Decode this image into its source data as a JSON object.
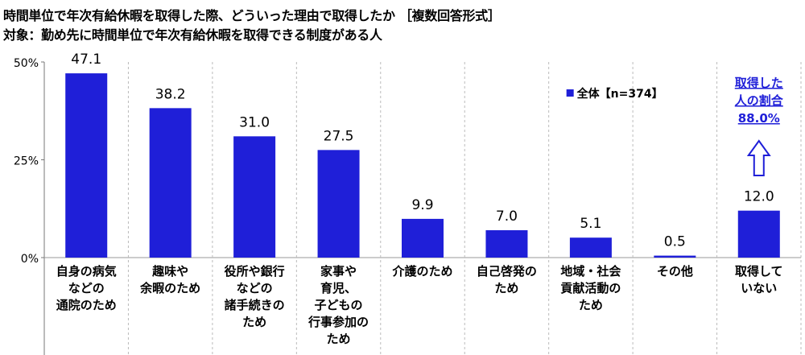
{
  "header": {
    "title": "時間単位で年次有給休暇を取得した際、どういった理由で取得したか ［複数回答形式］",
    "subtitle": "対象：勤め先に時間単位で年次有給休暇を取得できる制度がある人"
  },
  "chart_data": {
    "type": "bar",
    "title": "時間単位で年次有給休暇を取得した際、どういった理由で取得したか ［複数回答形式］",
    "subtitle": "対象：勤め先に時間単位で年次有給休暇を取得できる制度がある人",
    "categories": [
      [
        "自身の病気",
        "などの",
        "通院のため"
      ],
      [
        "趣味や",
        "余暇のため"
      ],
      [
        "役所や銀行",
        "などの",
        "諸手続きの",
        "ため"
      ],
      [
        "家事や",
        "育児、",
        "子どもの",
        "行事参加の",
        "ため"
      ],
      [
        "介護のため"
      ],
      [
        "自己啓発の",
        "ため"
      ],
      [
        "地域・社会",
        "貢献活動の",
        "ため"
      ],
      [
        "その他"
      ],
      [
        "取得して",
        "いない"
      ]
    ],
    "series": [
      {
        "name": "全体【n=374】",
        "values": [
          47.1,
          38.2,
          31.0,
          27.5,
          9.9,
          7.0,
          5.1,
          0.5,
          12.0
        ]
      }
    ],
    "value_labels": [
      "47.1",
      "38.2",
      "31.0",
      "27.5",
      "9.9",
      "7.0",
      "5.1",
      "0.5",
      "12.0"
    ],
    "y_ticks": [
      "0%",
      "25%",
      "50%"
    ],
    "ylim": [
      0,
      50
    ],
    "legend_placement": "top-right",
    "legend": "全体【n=374】",
    "callout": {
      "lines": [
        "取得した",
        "人の割合",
        "88.0%"
      ]
    },
    "colors": {
      "bar": "#1f1fd8",
      "callout": "#1f1fd8",
      "grid": "#bbbbbb"
    }
  }
}
